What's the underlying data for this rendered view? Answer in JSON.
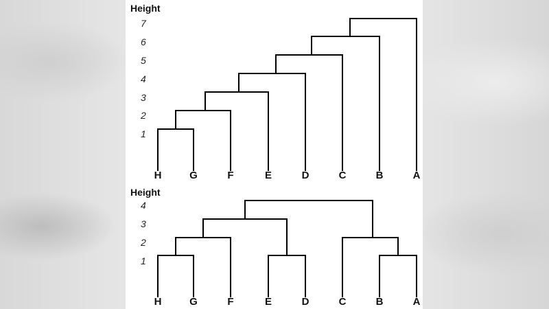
{
  "diagrams": [
    {
      "height_label": "Height",
      "tick_labels": [
        "7",
        "6",
        "5",
        "4",
        "3",
        "2",
        "1"
      ],
      "leaf_labels": [
        "H",
        "G",
        "F",
        "E",
        "D",
        "C",
        "B",
        "A"
      ]
    },
    {
      "height_label": "Height",
      "tick_labels": [
        "4",
        "3",
        "2",
        "1"
      ],
      "leaf_labels": [
        "H",
        "G",
        "F",
        "E",
        "D",
        "C",
        "B",
        "A"
      ]
    }
  ]
}
